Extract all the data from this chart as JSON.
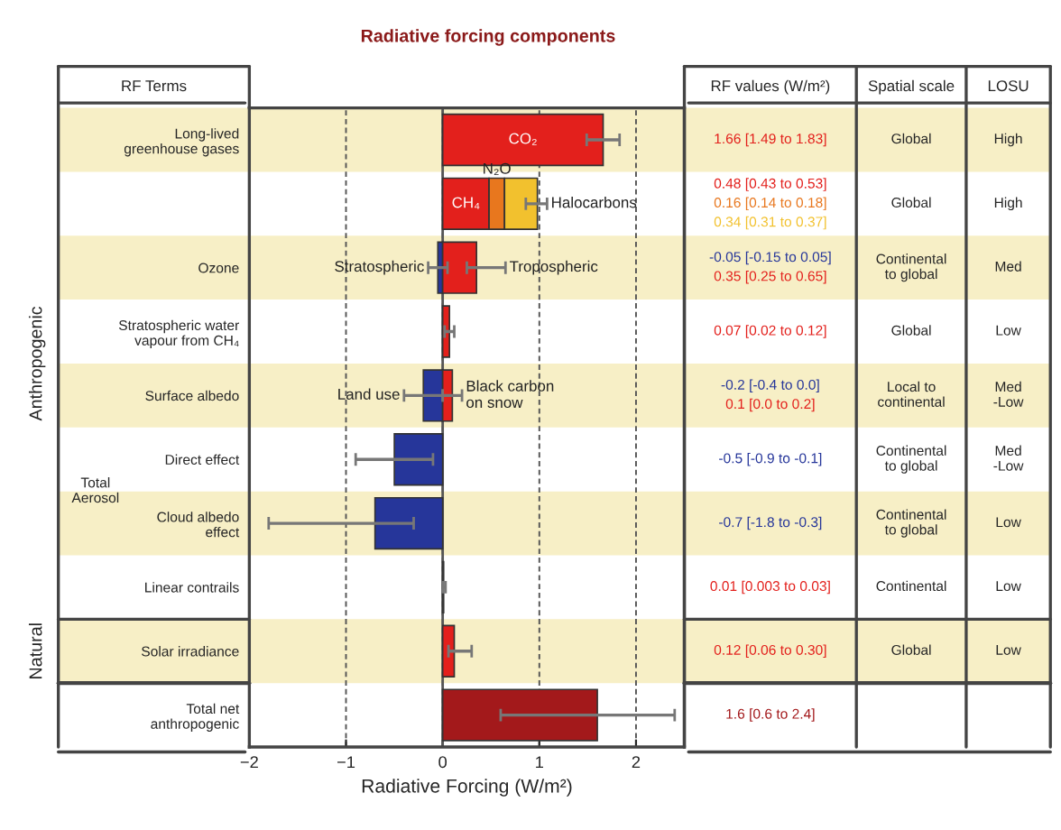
{
  "chart_data": {
    "type": "bar",
    "orientation": "horizontal",
    "stacked": true,
    "title": "Radiative forcing components",
    "xlabel": "Radiative Forcing (W/m²)",
    "categories": [
      "Long-lived\ngreenhouse gases",
      null,
      "Ozone",
      "Stratospheric water\nvapour from CH₄",
      "Surface albedo",
      "Direct effect",
      "Cloud albedo\neffect",
      "Linear contrails",
      "Solar irradiance",
      "Total net\nanthropogenic"
    ],
    "xlim": [
      -2,
      2.5
    ],
    "xticks": [
      {
        "value": -2,
        "label": "−2"
      },
      {
        "value": -1,
        "label": "−1"
      },
      0,
      1,
      2
    ],
    "grid": "x",
    "legend": false,
    "series": [
      {
        "name": "CO₂",
        "color": "#e3201c",
        "values": [
          1.66,
          null,
          null,
          null,
          null,
          null,
          null,
          null,
          null,
          null
        ],
        "errors": [
          [
            1.49,
            1.83
          ],
          null,
          null,
          null,
          null,
          null,
          null,
          null,
          null,
          null
        ]
      },
      {
        "name": "CH₄",
        "color": "#e3201c",
        "values": [
          null,
          0.48,
          null,
          null,
          null,
          null,
          null,
          null,
          null,
          null
        ]
      },
      {
        "name": "N₂O",
        "color": "#e8771e",
        "values": [
          null,
          0.16,
          null,
          null,
          null,
          null,
          null,
          null,
          null,
          null
        ]
      },
      {
        "name": "Halocarbons",
        "color": "#f2c12e",
        "values": [
          null,
          0.34,
          null,
          null,
          null,
          null,
          null,
          null,
          null,
          null
        ],
        "errors": [
          null,
          [
            0.86,
            1.08
          ],
          null,
          null,
          null,
          null,
          null,
          null,
          null,
          null
        ]
      },
      {
        "name": "Stratospheric",
        "color": "#26369a",
        "values": [
          null,
          null,
          -0.05,
          null,
          null,
          null,
          null,
          null,
          null,
          null
        ],
        "errors": [
          null,
          null,
          [
            -0.15,
            0.05
          ],
          null,
          null,
          null,
          null,
          null,
          null,
          null
        ]
      },
      {
        "name": "Tropospheric",
        "color": "#e3201c",
        "values": [
          null,
          null,
          0.35,
          null,
          null,
          null,
          null,
          null,
          null,
          null
        ],
        "errors": [
          null,
          null,
          [
            0.25,
            0.65
          ],
          null,
          null,
          null,
          null,
          null,
          null,
          null
        ]
      },
      {
        "color": "#e3201c",
        "values": [
          null,
          null,
          null,
          0.07,
          null,
          null,
          null,
          null,
          null,
          null
        ],
        "errors": [
          null,
          null,
          null,
          [
            0.02,
            0.12
          ],
          null,
          null,
          null,
          null,
          null,
          null
        ]
      },
      {
        "name": "Land use",
        "color": "#26369a",
        "values": [
          null,
          null,
          null,
          null,
          -0.2,
          null,
          null,
          null,
          null,
          null
        ],
        "errors": [
          null,
          null,
          null,
          null,
          [
            -0.4,
            0.0
          ],
          null,
          null,
          null,
          null,
          null
        ]
      },
      {
        "name": "Black carbon\non snow",
        "color": "#e3201c",
        "values": [
          null,
          null,
          null,
          null,
          0.1,
          null,
          null,
          null,
          null,
          null
        ],
        "errors": [
          null,
          null,
          null,
          null,
          [
            0.0,
            0.2
          ],
          null,
          null,
          null,
          null,
          null
        ]
      },
      {
        "color": "#26369a",
        "values": [
          null,
          null,
          null,
          null,
          null,
          -0.5,
          null,
          null,
          null,
          null
        ],
        "errors": [
          null,
          null,
          null,
          null,
          null,
          [
            -0.9,
            -0.1
          ],
          null,
          null,
          null,
          null
        ]
      },
      {
        "color": "#26369a",
        "values": [
          null,
          null,
          null,
          null,
          null,
          null,
          -0.7,
          null,
          null,
          null
        ],
        "errors": [
          null,
          null,
          null,
          null,
          null,
          null,
          [
            -1.8,
            -0.3
          ],
          null,
          null,
          null
        ]
      },
      {
        "color": "#e3201c",
        "values": [
          null,
          null,
          null,
          null,
          null,
          null,
          null,
          0.01,
          null,
          null
        ],
        "errors": [
          null,
          null,
          null,
          null,
          null,
          null,
          null,
          [
            0.003,
            0.03
          ],
          null,
          null
        ]
      },
      {
        "color": "#e3201c",
        "values": [
          null,
          null,
          null,
          null,
          null,
          null,
          null,
          null,
          0.12,
          null
        ],
        "errors": [
          null,
          null,
          null,
          null,
          null,
          null,
          null,
          null,
          [
            0.06,
            0.3
          ],
          null
        ]
      },
      {
        "color": "#a3191b",
        "values": [
          null,
          null,
          null,
          null,
          null,
          null,
          null,
          null,
          null,
          1.6
        ],
        "errors": [
          null,
          null,
          null,
          null,
          null,
          null,
          null,
          null,
          null,
          [
            0.6,
            2.4
          ]
        ]
      }
    ],
    "annotations": [
      "RF Terms",
      "RF values (W/m²)",
      "Spatial scale",
      "LOSU",
      "Anthropogenic",
      "Natural",
      "Total\nAerosol",
      "1.66 [1.49 to 1.83]",
      "0.48 [0.43 to 0.53]",
      "0.16 [0.14 to 0.18]",
      "0.34 [0.31 to 0.37]",
      "-0.05 [-0.15 to 0.05]",
      "0.35 [0.25 to 0.65]",
      "0.07 [0.02 to 0.12]",
      "-0.2 [-0.4 to 0.0]",
      "0.1 [0.0 to 0.2]",
      "-0.5 [-0.9 to -0.1]",
      "-0.7 [-1.8 to -0.3]",
      "0.01 [0.003 to 0.03]",
      "0.12 [0.06 to 0.30]",
      "1.6 [0.6 to 2.4]",
      "Global",
      "Global",
      "Continental\nto global",
      "Global",
      "Local to\ncontinental",
      "Continental\nto global",
      "Continental\nto global",
      "Continental",
      "Global",
      "High",
      "High",
      "Med",
      "Low",
      "Med\n-Low",
      "Med\n-Low",
      "Low",
      "Low",
      "Low"
    ]
  }
}
